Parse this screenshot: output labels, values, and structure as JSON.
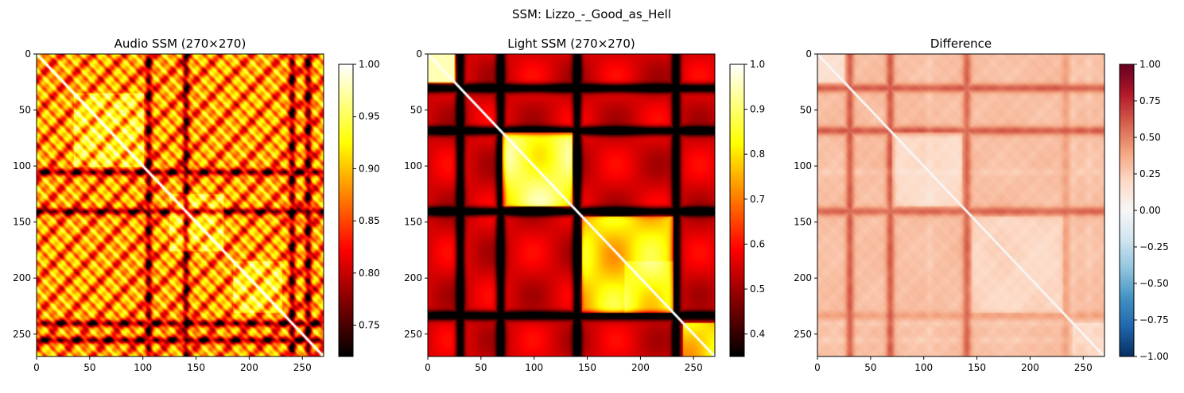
{
  "figure": {
    "suptitle": "SSM: Lizzo_-_Good_as_Hell"
  },
  "chart_data": [
    {
      "type": "heatmap",
      "title": "Audio SSM (270×270)",
      "size": 270,
      "colormap": "hot",
      "vmin": 0.72,
      "vmax": 1.0,
      "xlim": [
        0,
        270
      ],
      "ylim": [
        270,
        0
      ],
      "xticks": [
        "0",
        "50",
        "100",
        "150",
        "200",
        "250"
      ],
      "yticks": [
        "0",
        "50",
        "100",
        "150",
        "200",
        "250"
      ],
      "colorbar_ticks": [
        "0.75",
        "0.80",
        "0.85",
        "0.90",
        "0.95",
        "1.00"
      ],
      "colorbar_tick_values": [
        0.75,
        0.8,
        0.85,
        0.9,
        0.95,
        1.0
      ],
      "dark_bands": [
        105,
        140,
        240,
        255
      ],
      "bright_blocks": [
        [
          35,
          100
        ],
        [
          125,
          175
        ],
        [
          185,
          230
        ]
      ],
      "grid": false
    },
    {
      "type": "heatmap",
      "title": "Light SSM (270×270)",
      "size": 270,
      "colormap": "hot",
      "vmin": 0.35,
      "vmax": 1.0,
      "xlim": [
        0,
        270
      ],
      "ylim": [
        270,
        0
      ],
      "xticks": [
        "0",
        "50",
        "100",
        "150",
        "200",
        "250"
      ],
      "yticks": [
        "0",
        "50",
        "100",
        "150",
        "200",
        "250"
      ],
      "colorbar_ticks": [
        "0.4",
        "0.5",
        "0.6",
        "0.7",
        "0.8",
        "0.9",
        "1.0"
      ],
      "colorbar_tick_values": [
        0.4,
        0.5,
        0.6,
        0.7,
        0.8,
        0.9,
        1.0
      ],
      "dark_bands": [
        30,
        68,
        140,
        233
      ],
      "bright_blocks": [
        [
          0,
          25
        ],
        [
          70,
          135
        ],
        [
          145,
          230
        ],
        [
          240,
          270
        ]
      ],
      "grid": false
    },
    {
      "type": "heatmap",
      "title": "Difference",
      "size": 270,
      "colormap": "RdBu_r",
      "vmin": -1.0,
      "vmax": 1.0,
      "xlim": [
        0,
        270
      ],
      "ylim": [
        270,
        0
      ],
      "xticks": [
        "0",
        "50",
        "100",
        "150",
        "200",
        "250"
      ],
      "yticks": [
        "0",
        "50",
        "100",
        "150",
        "200",
        "250"
      ],
      "colorbar_ticks": [
        "1.00",
        "0.75",
        "0.50",
        "0.25",
        "0.00",
        "−0.25",
        "−0.50",
        "−0.75",
        "−1.00"
      ],
      "colorbar_tick_values": [
        1.0,
        0.75,
        0.5,
        0.25,
        0.0,
        -0.25,
        -0.5,
        -0.75,
        -1.0
      ],
      "dark_bands": [
        30,
        68,
        140
      ],
      "grid": false
    }
  ]
}
